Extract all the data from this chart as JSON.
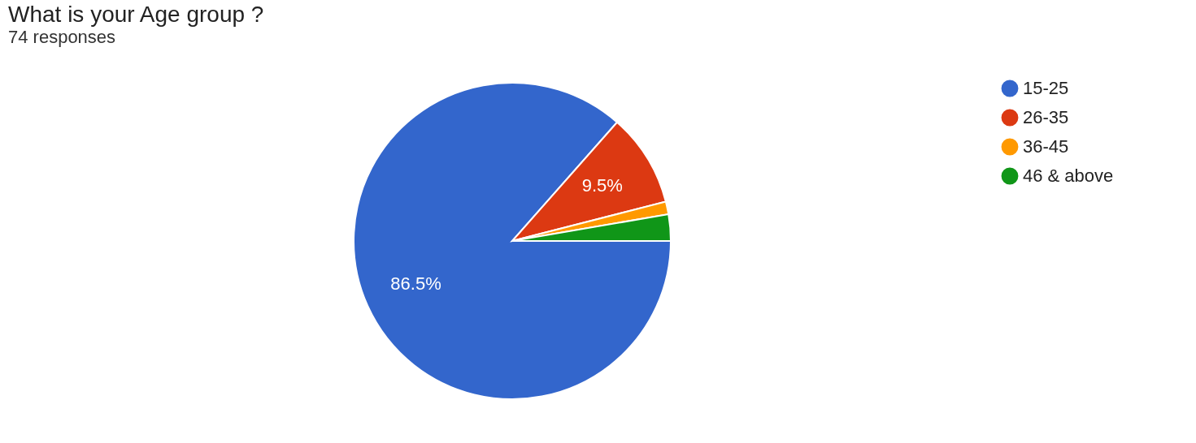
{
  "chart_data": {
    "type": "pie",
    "title": "What is your Age group ?",
    "subtitle": "74 responses",
    "categories": [
      "15-25",
      "26-35",
      "36-45",
      "46 & above"
    ],
    "values": [
      86.5,
      9.5,
      1.3,
      2.7
    ],
    "colors": [
      "#3366cc",
      "#dc3912",
      "#ff9900",
      "#109618"
    ],
    "value_labels": [
      "86.5%",
      "9.5%",
      null,
      null
    ],
    "legend": "right"
  }
}
